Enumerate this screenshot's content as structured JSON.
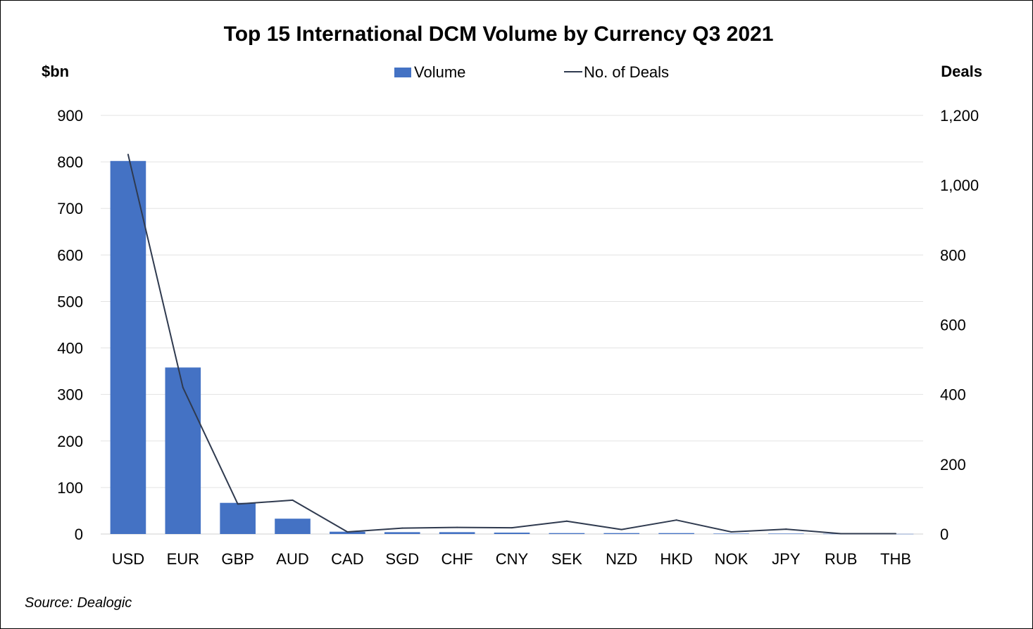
{
  "chart_data": {
    "type": "bar",
    "title": "Top 15 International DCM Volume by Currency Q3 2021",
    "categories": [
      "USD",
      "EUR",
      "GBP",
      "AUD",
      "CAD",
      "SGD",
      "CHF",
      "CNY",
      "SEK",
      "NZD",
      "HKD",
      "NOK",
      "JPY",
      "RUB",
      "THB"
    ],
    "series": [
      {
        "name": "Volume",
        "type": "bar",
        "axis": "left",
        "color": "#4472C4",
        "values": [
          802,
          358,
          67,
          33,
          5,
          4,
          4,
          3,
          2,
          2,
          2,
          1,
          1,
          0.5,
          0.3
        ]
      },
      {
        "name": "No. of Deals",
        "type": "line",
        "axis": "right",
        "color": "#2F3A4F",
        "values": [
          1088,
          420,
          86,
          97,
          6,
          17,
          19,
          18,
          37,
          13,
          40,
          6,
          14,
          1,
          1
        ]
      }
    ],
    "ylabel_left": "$bn",
    "ylabel_right": "Deals",
    "ylim_left": [
      0,
      900
    ],
    "ylim_right": [
      0,
      1200
    ],
    "yticks_left": [
      0,
      100,
      200,
      300,
      400,
      500,
      600,
      700,
      800,
      900
    ],
    "yticks_right": [
      0,
      200,
      400,
      600,
      800,
      1000,
      1200
    ],
    "yticks_left_labels": [
      "0",
      "100",
      "200",
      "300",
      "400",
      "500",
      "600",
      "700",
      "800",
      "900"
    ],
    "yticks_right_labels": [
      "0",
      "200",
      "400",
      "600",
      "800",
      "1,000",
      "1,200"
    ],
    "legend_position": "top-center",
    "grid": true,
    "source": "Source: Dealogic"
  }
}
